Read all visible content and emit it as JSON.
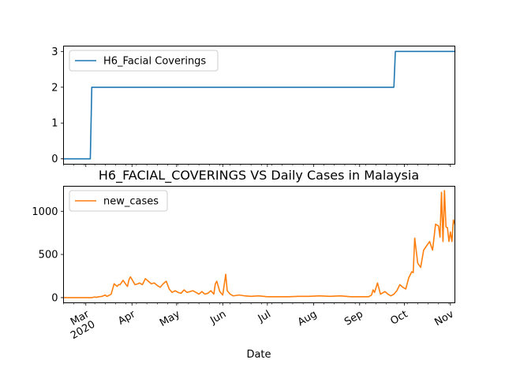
{
  "chart_data": [
    {
      "type": "line",
      "title": "",
      "xlabel": "",
      "ylabel": "",
      "ylim": [
        -0.15,
        3.15
      ],
      "xlim": [
        "2020-02-15",
        "2020-11-04"
      ],
      "yticks": [
        "0",
        "1",
        "2",
        "3"
      ],
      "legend": {
        "placement": "top-left"
      },
      "grid": false,
      "series": [
        {
          "name": "H6_Facial Coverings",
          "color": "#1f77b4",
          "step": true,
          "x": [
            "2020-02-15",
            "2020-03-04",
            "2020-03-05",
            "2020-09-24",
            "2020-09-25",
            "2020-11-04"
          ],
          "values": [
            0,
            0,
            2,
            2,
            3,
            3
          ]
        }
      ]
    },
    {
      "type": "line",
      "title": "H6_FACIAL_COVERINGS VS Daily Cases in Malaysia",
      "xlabel": "Date",
      "ylabel": "",
      "ylim": [
        -60,
        1290
      ],
      "xlim": [
        "2020-02-15",
        "2020-11-04"
      ],
      "yticks": [
        "0",
        "500",
        "1000"
      ],
      "xticks": [
        {
          "date": "2020-03-01",
          "label": "Mar",
          "sublabel": "2020"
        },
        {
          "date": "2020-04-01",
          "label": "Apr",
          "sublabel": ""
        },
        {
          "date": "2020-05-01",
          "label": "May",
          "sublabel": ""
        },
        {
          "date": "2020-06-01",
          "label": "Jun",
          "sublabel": ""
        },
        {
          "date": "2020-07-01",
          "label": "Jul",
          "sublabel": ""
        },
        {
          "date": "2020-08-01",
          "label": "Aug",
          "sublabel": ""
        },
        {
          "date": "2020-09-01",
          "label": "Sep",
          "sublabel": ""
        },
        {
          "date": "2020-10-01",
          "label": "Oct",
          "sublabel": ""
        },
        {
          "date": "2020-11-01",
          "label": "Nov",
          "sublabel": ""
        }
      ],
      "legend": {
        "placement": "top-left"
      },
      "grid": false,
      "series": [
        {
          "name": "new_cases",
          "color": "#ff7f0e",
          "x": [
            "2020-02-15",
            "2020-03-01",
            "2020-03-05",
            "2020-03-07",
            "2020-03-08",
            "2020-03-10",
            "2020-03-12",
            "2020-03-14",
            "2020-03-15",
            "2020-03-16",
            "2020-03-18",
            "2020-03-20",
            "2020-03-22",
            "2020-03-23",
            "2020-03-24",
            "2020-03-26",
            "2020-03-28",
            "2020-03-29",
            "2020-03-30",
            "2020-03-31",
            "2020-04-02",
            "2020-04-03",
            "2020-04-05",
            "2020-04-06",
            "2020-04-08",
            "2020-04-10",
            "2020-04-12",
            "2020-04-14",
            "2020-04-16",
            "2020-04-18",
            "2020-04-20",
            "2020-04-22",
            "2020-04-24",
            "2020-04-26",
            "2020-04-28",
            "2020-04-30",
            "2020-05-02",
            "2020-05-04",
            "2020-05-06",
            "2020-05-08",
            "2020-05-10",
            "2020-05-12",
            "2020-05-14",
            "2020-05-16",
            "2020-05-18",
            "2020-05-20",
            "2020-05-22",
            "2020-05-24",
            "2020-05-26",
            "2020-05-27",
            "2020-05-28",
            "2020-05-30",
            "2020-06-01",
            "2020-06-03",
            "2020-06-04",
            "2020-06-06",
            "2020-06-08",
            "2020-06-12",
            "2020-06-16",
            "2020-06-20",
            "2020-06-25",
            "2020-07-01",
            "2020-07-08",
            "2020-07-15",
            "2020-07-22",
            "2020-07-29",
            "2020-08-05",
            "2020-08-12",
            "2020-08-19",
            "2020-08-26",
            "2020-09-02",
            "2020-09-07",
            "2020-09-09",
            "2020-09-10",
            "2020-09-11",
            "2020-09-13",
            "2020-09-15",
            "2020-09-16",
            "2020-09-18",
            "2020-09-20",
            "2020-09-22",
            "2020-09-24",
            "2020-09-26",
            "2020-09-28",
            "2020-09-30",
            "2020-10-02",
            "2020-10-04",
            "2020-10-06",
            "2020-10-07",
            "2020-10-08",
            "2020-10-10",
            "2020-10-12",
            "2020-10-14",
            "2020-10-16",
            "2020-10-18",
            "2020-10-20",
            "2020-10-22",
            "2020-10-24",
            "2020-10-25",
            "2020-10-26",
            "2020-10-27",
            "2020-10-28",
            "2020-10-29",
            "2020-10-30",
            "2020-10-31",
            "2020-11-01",
            "2020-11-02",
            "2020-11-03",
            "2020-11-04"
          ],
          "values": [
            0,
            0,
            0,
            7,
            3,
            10,
            15,
            30,
            15,
            20,
            40,
            160,
            130,
            150,
            150,
            200,
            150,
            130,
            210,
            240,
            180,
            150,
            160,
            170,
            150,
            220,
            190,
            160,
            170,
            140,
            120,
            160,
            190,
            100,
            60,
            80,
            60,
            50,
            90,
            60,
            70,
            80,
            60,
            40,
            70,
            40,
            50,
            80,
            40,
            160,
            190,
            70,
            30,
            270,
            80,
            40,
            20,
            30,
            20,
            15,
            20,
            10,
            10,
            10,
            15,
            15,
            20,
            15,
            20,
            10,
            10,
            10,
            30,
            90,
            60,
            170,
            40,
            50,
            70,
            40,
            20,
            40,
            80,
            150,
            120,
            100,
            230,
            300,
            290,
            690,
            400,
            350,
            550,
            600,
            650,
            550,
            850,
            830,
            700,
            1220,
            650,
            1240,
            820,
            810,
            650,
            760,
            650,
            900,
            850
          ]
        }
      ]
    }
  ]
}
